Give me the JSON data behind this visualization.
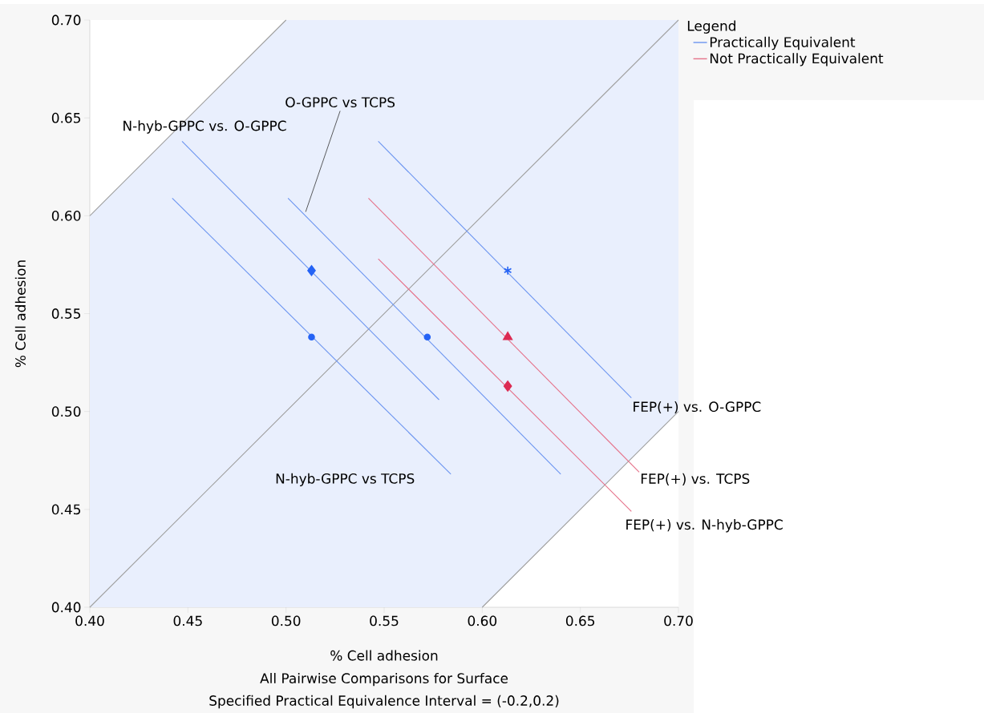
{
  "chart_data": {
    "type": "line",
    "xlabel": "% Cell adhesion",
    "ylabel": "% Cell adhesion",
    "legend_title": "Legend",
    "legend": "top right",
    "xlim": [
      0.4,
      0.7
    ],
    "ylim": [
      0.4,
      0.7
    ],
    "xticks": [
      {
        "value": 0.4,
        "label": "0.40"
      },
      {
        "value": 0.45,
        "label": "0.45"
      },
      {
        "value": 0.5,
        "label": "0.50"
      },
      {
        "value": 0.55,
        "label": "0.55"
      },
      {
        "value": 0.6,
        "label": "0.60"
      },
      {
        "value": 0.65,
        "label": "0.65"
      },
      {
        "value": 0.7,
        "label": "0.70"
      }
    ],
    "yticks": [
      {
        "value": 0.4,
        "label": "0.40"
      },
      {
        "value": 0.45,
        "label": "0.45"
      },
      {
        "value": 0.5,
        "label": "0.50"
      },
      {
        "value": 0.55,
        "label": "0.55"
      },
      {
        "value": 0.6,
        "label": "0.60"
      },
      {
        "value": 0.65,
        "label": "0.65"
      },
      {
        "value": 0.7,
        "label": "0.70"
      }
    ],
    "series": [
      {
        "color": "#a0a0a0",
        "x": [
          0.4,
          0.5,
          0.6,
          0.7
        ],
        "values": [
          0.4,
          0.5,
          0.6,
          0.7
        ],
        "lower": [
          0.4,
          0.4,
          0.4,
          0.5
        ],
        "upper": [
          0.6,
          0.7,
          0.7,
          0.7
        ]
      },
      {
        "color": "#a0a0a0",
        "x": [
          0.4,
          0.5
        ],
        "values": [
          0.6,
          0.7
        ]
      },
      {
        "color": "#a0a0a0",
        "x": [
          0.6,
          0.7
        ],
        "values": [
          0.4,
          0.5
        ]
      },
      {
        "name": "Practically Equivalent",
        "color": "#6b94f0",
        "x": [
          0.442,
          0.584
        ],
        "values": [
          0.609,
          0.468
        ]
      },
      {
        "color": "#6b94f0",
        "x": [
          0.447,
          0.578
        ],
        "values": [
          0.638,
          0.506
        ]
      },
      {
        "color": "#6b94f0",
        "x": [
          0.501,
          0.64
        ],
        "values": [
          0.609,
          0.468
        ]
      },
      {
        "color": "#6b94f0",
        "x": [
          0.547,
          0.676
        ],
        "values": [
          0.638,
          0.507
        ]
      },
      {
        "name": "Not Practically Equivalent",
        "color": "#e5728a",
        "x": [
          0.542,
          0.68
        ],
        "values": [
          0.609,
          0.469
        ]
      },
      {
        "color": "#e5728a",
        "x": [
          0.547,
          0.676
        ],
        "values": [
          0.578,
          0.449
        ]
      },
      {
        "type": "scatter",
        "marker": "circle",
        "color": "#2563f5",
        "x": [
          0.513
        ],
        "values": [
          0.538
        ]
      },
      {
        "type": "scatter",
        "marker": "diamond",
        "color": "#2563f5",
        "x": [
          0.513
        ],
        "values": [
          0.572
        ]
      },
      {
        "type": "scatter",
        "marker": "circle",
        "color": "#2563f5",
        "x": [
          0.572
        ],
        "values": [
          0.538
        ]
      },
      {
        "type": "scatter",
        "marker": "cross",
        "color": "#2563f5",
        "x": [
          0.613
        ],
        "values": [
          0.572
        ]
      },
      {
        "type": "scatter",
        "marker": "triangle",
        "color": "#dc2a52",
        "x": [
          0.613
        ],
        "values": [
          0.538
        ]
      },
      {
        "type": "scatter",
        "marker": "diamond",
        "color": "#dc2a52",
        "x": [
          0.613
        ],
        "values": [
          0.513
        ]
      }
    ],
    "annotations": [
      {
        "text": "O-GPPC vs TCPS",
        "x": 0.51,
        "y": 0.602
      },
      {
        "text": "N-hyb-GPPC vs. O-GPPC",
        "x": 0.447,
        "y": 0.638
      },
      {
        "text": "N-hyb-GPPC vs TCPS",
        "x": 0.584,
        "y": 0.468
      },
      {
        "text": "FEP(+) vs. O-GPPC",
        "x": 0.676,
        "y": 0.507
      },
      {
        "text": "FEP(+) vs. TCPS",
        "x": 0.68,
        "y": 0.469
      },
      {
        "text": "FEP(+) vs. N-hyb-GPPC",
        "x": 0.676,
        "y": 0.449
      },
      "All Pairwise Comparisons for Surface",
      "Specified Practical Equivalence Interval = (-0.2,0.2)"
    ]
  }
}
